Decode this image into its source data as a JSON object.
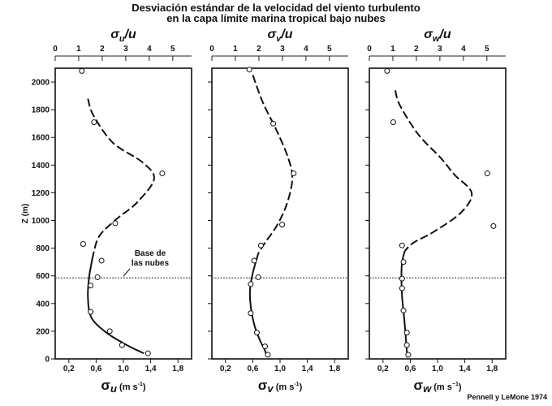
{
  "figure": {
    "title_line1": "Desviación estándar de la velocidad del viento turbulento",
    "title_line2": "en la capa límite marina tropical bajo nubes",
    "credit": "Pennell y LeMone 1974",
    "ylabel": "Z (m)",
    "cloud_base_label_line1": "Base de",
    "cloud_base_label_line2": "las nubes"
  },
  "chart_data": [
    {
      "type": "scatter",
      "title_sym": "σ",
      "title_sub": "u",
      "title_rest": "/u",
      "xlabel_sym": "σ",
      "xlabel_sub": "u",
      "xlabel_units": "(m s",
      "xlabel_exp": "-1",
      "xlabel_close": ")",
      "top_ticks": [
        "0",
        "1",
        "2",
        "3",
        "4",
        "5"
      ],
      "top_xlim": [
        0,
        5.8
      ],
      "bottom_ticks": [
        "0,2",
        "0,6",
        "1,0",
        "1,4",
        "1,8"
      ],
      "bottom_tick_values": [
        0.2,
        0.6,
        1.0,
        1.4,
        1.8
      ],
      "xlim": [
        0,
        2.0
      ],
      "y_ticks": [
        0,
        200,
        400,
        600,
        800,
        1000,
        1200,
        1400,
        1600,
        1800,
        2000
      ],
      "ylim": [
        0,
        2100
      ],
      "cloud_base": 585,
      "points": [
        [
          0.39,
          2080
        ],
        [
          0.57,
          1710
        ],
        [
          1.57,
          1340
        ],
        [
          0.88,
          980
        ],
        [
          0.41,
          830
        ],
        [
          0.68,
          710
        ],
        [
          0.62,
          590
        ],
        [
          0.52,
          530
        ],
        [
          0.52,
          340
        ],
        [
          0.8,
          200
        ],
        [
          0.98,
          100
        ],
        [
          1.36,
          40
        ]
      ],
      "curve_dashed": [
        [
          0.48,
          1880
        ],
        [
          0.56,
          1760
        ],
        [
          0.85,
          1560
        ],
        [
          1.28,
          1420
        ],
        [
          1.45,
          1300
        ],
        [
          1.2,
          1130
        ],
        [
          0.9,
          1010
        ],
        [
          0.65,
          890
        ],
        [
          0.56,
          760
        ]
      ],
      "curve_solid": [
        [
          0.56,
          760
        ],
        [
          0.5,
          600
        ],
        [
          0.48,
          450
        ],
        [
          0.53,
          300
        ],
        [
          0.75,
          190
        ],
        [
          1.05,
          100
        ],
        [
          1.3,
          40
        ]
      ]
    },
    {
      "type": "scatter",
      "title_sym": "σ",
      "title_sub": "v",
      "title_rest": "/u",
      "xlabel_sym": "σ",
      "xlabel_sub": "v",
      "xlabel_units": "(m s",
      "xlabel_exp": "-1",
      "xlabel_close": ")",
      "top_ticks": [
        "0",
        "1",
        "2",
        "3",
        "4",
        "5"
      ],
      "top_xlim": [
        0,
        5.8
      ],
      "bottom_ticks": [
        "0,2",
        "0,6",
        "1,0",
        "1,4",
        "1,8"
      ],
      "bottom_tick_values": [
        0.2,
        0.6,
        1.0,
        1.4,
        1.8
      ],
      "xlim": [
        0,
        2.0
      ],
      "y_ticks": [
        0,
        200,
        400,
        600,
        800,
        1000,
        1200,
        1400,
        1600,
        1800,
        2000
      ],
      "ylim": [
        0,
        2100
      ],
      "cloud_base": 585,
      "points": [
        [
          0.55,
          2090
        ],
        [
          0.9,
          1700
        ],
        [
          1.2,
          1340
        ],
        [
          1.03,
          970
        ],
        [
          0.72,
          820
        ],
        [
          0.62,
          710
        ],
        [
          0.68,
          590
        ],
        [
          0.57,
          540
        ],
        [
          0.57,
          330
        ],
        [
          0.66,
          190
        ],
        [
          0.78,
          90
        ],
        [
          0.82,
          30
        ]
      ],
      "curve_dashed": [
        [
          0.6,
          2050
        ],
        [
          0.75,
          1850
        ],
        [
          0.95,
          1650
        ],
        [
          1.12,
          1450
        ],
        [
          1.18,
          1300
        ],
        [
          1.1,
          1120
        ],
        [
          0.95,
          960
        ],
        [
          0.78,
          840
        ],
        [
          0.68,
          760
        ]
      ],
      "curve_solid": [
        [
          0.68,
          760
        ],
        [
          0.6,
          620
        ],
        [
          0.56,
          500
        ],
        [
          0.57,
          380
        ],
        [
          0.62,
          250
        ],
        [
          0.7,
          140
        ],
        [
          0.78,
          60
        ],
        [
          0.8,
          20
        ]
      ]
    },
    {
      "type": "scatter",
      "title_sym": "σ",
      "title_sub": "w",
      "title_rest": "/u",
      "xlabel_sym": "σ",
      "xlabel_sub": "w",
      "xlabel_units": "(m s",
      "xlabel_exp": "−1",
      "xlabel_close": ")",
      "top_ticks": [
        "0",
        "1",
        "2",
        "3",
        "4",
        "5"
      ],
      "top_xlim": [
        0,
        5.8
      ],
      "bottom_ticks": [
        "0,2",
        "0,6",
        "1,0",
        "1,4",
        "1,8"
      ],
      "bottom_tick_values": [
        0.2,
        0.6,
        1.0,
        1.4,
        1.8
      ],
      "xlim": [
        0,
        2.0
      ],
      "y_ticks": [
        0,
        200,
        400,
        600,
        800,
        1000,
        1200,
        1400,
        1600,
        1800,
        2000
      ],
      "ylim": [
        0,
        2100
      ],
      "cloud_base": 585,
      "points": [
        [
          0.26,
          2080
        ],
        [
          0.35,
          1710
        ],
        [
          1.73,
          1340
        ],
        [
          1.82,
          960
        ],
        [
          0.48,
          820
        ],
        [
          0.5,
          700
        ],
        [
          0.48,
          580
        ],
        [
          0.48,
          510
        ],
        [
          0.5,
          350
        ],
        [
          0.55,
          190
        ],
        [
          0.55,
          100
        ],
        [
          0.57,
          30
        ]
      ],
      "curve_dashed": [
        [
          0.38,
          1940
        ],
        [
          0.45,
          1830
        ],
        [
          0.72,
          1620
        ],
        [
          1.05,
          1450
        ],
        [
          1.25,
          1330
        ],
        [
          1.5,
          1200
        ],
        [
          1.35,
          1060
        ],
        [
          0.95,
          920
        ],
        [
          0.65,
          840
        ],
        [
          0.52,
          780
        ]
      ],
      "curve_solid": [
        [
          0.52,
          780
        ],
        [
          0.48,
          700
        ],
        [
          0.47,
          600
        ],
        [
          0.48,
          450
        ],
        [
          0.51,
          300
        ],
        [
          0.53,
          180
        ],
        [
          0.55,
          50
        ],
        [
          0.56,
          10
        ]
      ]
    }
  ]
}
